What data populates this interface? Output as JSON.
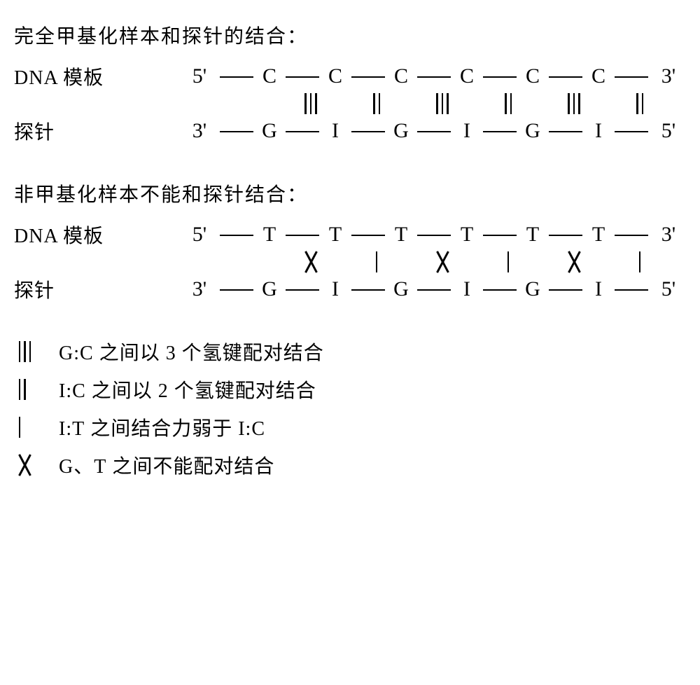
{
  "section1": {
    "title": "完全甲基化样本和探针的结合：",
    "template_label_prefix": "DNA ",
    "template_label_suffix": "模板",
    "probe_label": "探针",
    "top_end_left": "5'",
    "top_end_right": "3'",
    "bot_end_left": "3'",
    "bot_end_right": "5'",
    "top_bases": [
      "C",
      "C",
      "C",
      "C",
      "C",
      "C"
    ],
    "bot_bases": [
      "G",
      "I",
      "G",
      "I",
      "G",
      "I"
    ],
    "bonds": [
      "triple",
      "double",
      "triple",
      "double",
      "triple",
      "double"
    ]
  },
  "section2": {
    "title": "非甲基化样本不能和探针结合：",
    "template_label_prefix": "DNA ",
    "template_label_suffix": "模板",
    "probe_label": "探针",
    "top_end_left": "5'",
    "top_end_right": "3'",
    "bot_end_left": "3'",
    "bot_end_right": "5'",
    "top_bases": [
      "T",
      "T",
      "T",
      "T",
      "T",
      "T"
    ],
    "bot_bases": [
      "G",
      "I",
      "G",
      "I",
      "G",
      "I"
    ],
    "bonds": [
      "x",
      "single",
      "x",
      "single",
      "x",
      "single"
    ]
  },
  "legend": {
    "items": [
      {
        "symbol": "triple",
        "text_pre": "G:C",
        "text_post": " 之间以 3 个氢键配对结合"
      },
      {
        "symbol": "double",
        "text_pre": "I:C",
        "text_post": " 之间以 2 个氢键配对结合"
      },
      {
        "symbol": "single",
        "text_pre": "I:T",
        "text_post": " 之间结合力弱于 I:C"
      },
      {
        "symbol": "x",
        "text_pre": "G、T",
        "text_post": " 之间不能配对结合"
      }
    ]
  },
  "style": {
    "font_family_cjk": "SimSun",
    "font_family_latin": "Times New Roman",
    "font_size_body": 28,
    "font_size_seq": 30,
    "text_color": "#000000",
    "background_color": "#ffffff",
    "line_color": "#000000"
  }
}
